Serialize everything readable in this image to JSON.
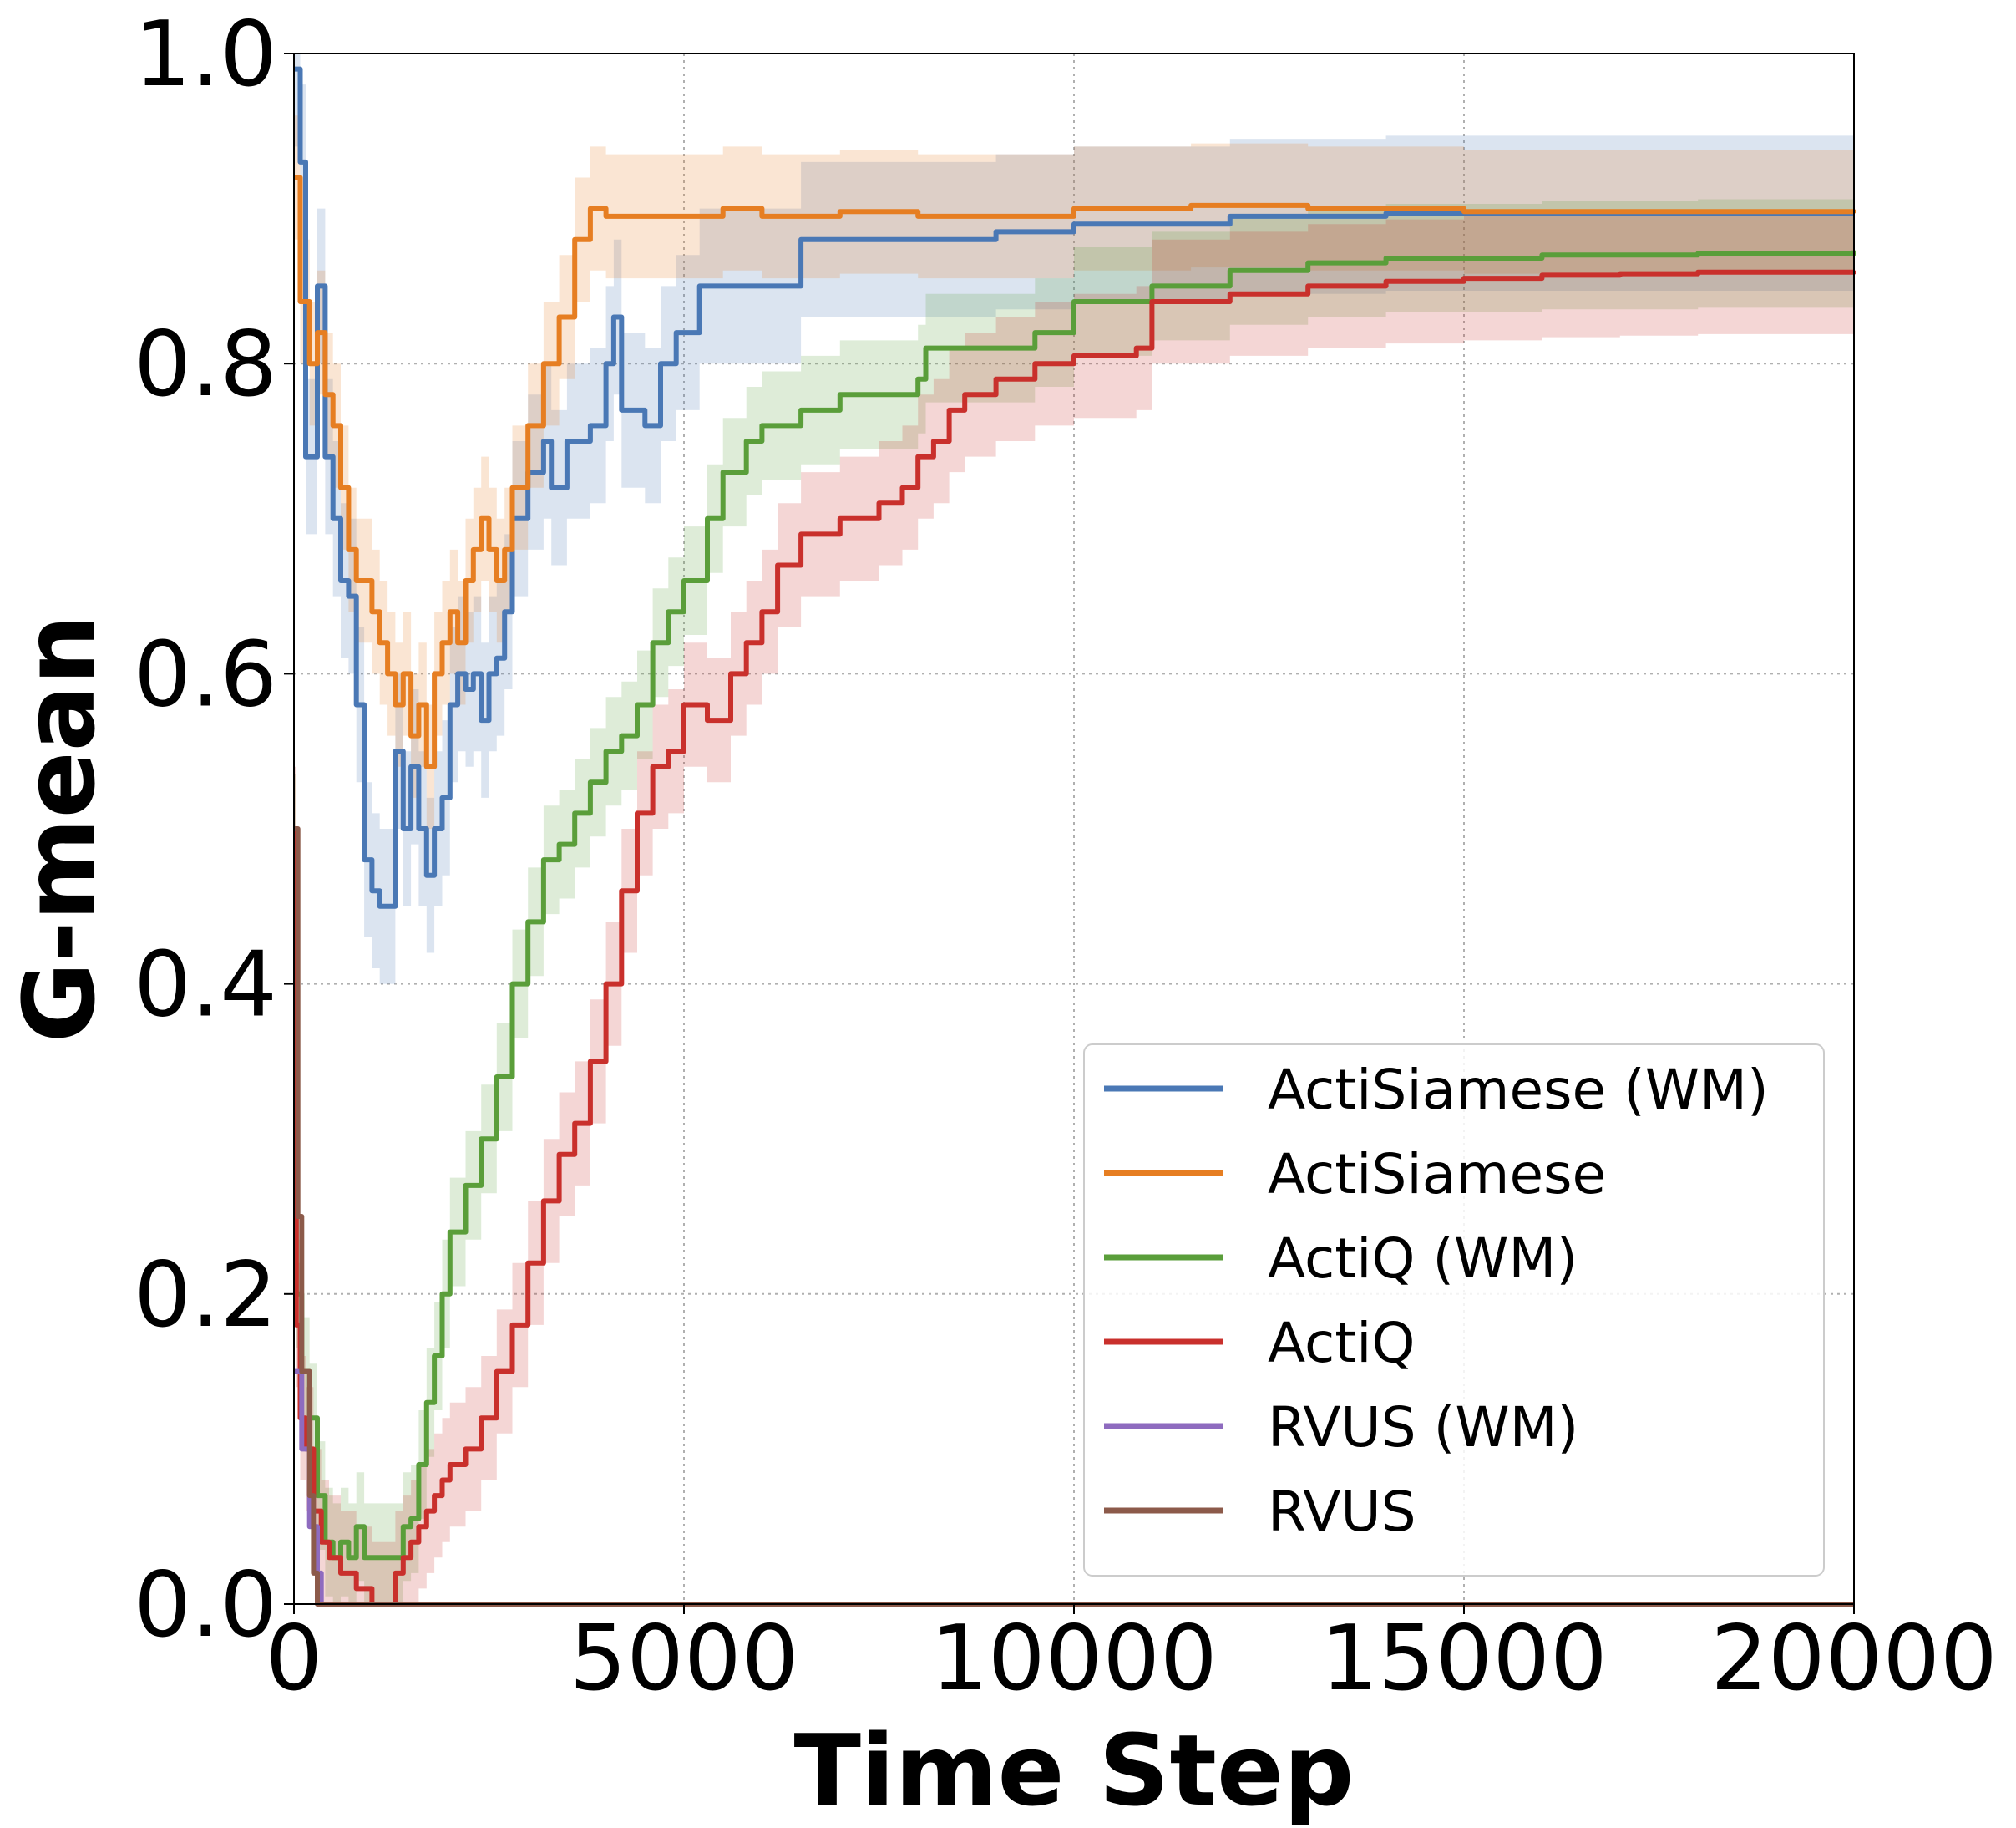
{
  "chart_data": {
    "type": "line",
    "title": "",
    "xlabel": "Time Step",
    "ylabel": "G-mean",
    "xlim": [
      0,
      20000
    ],
    "ylim": [
      0.0,
      1.0
    ],
    "xticks": [
      0,
      5000,
      10000,
      15000,
      20000
    ],
    "xtick_labels": [
      "0",
      "5000",
      "10000",
      "15000",
      "20000"
    ],
    "yticks": [
      0.0,
      0.2,
      0.4,
      0.6,
      0.8,
      1.0
    ],
    "ytick_labels": [
      "0.0",
      "0.2",
      "0.4",
      "0.6",
      "0.8",
      "1.0"
    ],
    "grid": true,
    "legend_position": "lower-right",
    "series": [
      {
        "name": "ActiSiamese (WM)",
        "color": "#4a78b5",
        "band": 0.05,
        "points": [
          [
            0,
            0.99
          ],
          [
            80,
            0.93
          ],
          [
            150,
            0.74
          ],
          [
            300,
            0.85
          ],
          [
            400,
            0.74
          ],
          [
            500,
            0.7
          ],
          [
            600,
            0.66
          ],
          [
            700,
            0.65
          ],
          [
            800,
            0.58
          ],
          [
            900,
            0.48
          ],
          [
            1000,
            0.46
          ],
          [
            1100,
            0.45
          ],
          [
            1200,
            0.45
          ],
          [
            1300,
            0.55
          ],
          [
            1400,
            0.5
          ],
          [
            1500,
            0.54
          ],
          [
            1600,
            0.5
          ],
          [
            1700,
            0.47
          ],
          [
            1800,
            0.5
          ],
          [
            1900,
            0.52
          ],
          [
            2000,
            0.58
          ],
          [
            2100,
            0.6
          ],
          [
            2200,
            0.59
          ],
          [
            2300,
            0.6
          ],
          [
            2400,
            0.57
          ],
          [
            2500,
            0.6
          ],
          [
            2600,
            0.61
          ],
          [
            2700,
            0.64
          ],
          [
            2800,
            0.7
          ],
          [
            3000,
            0.73
          ],
          [
            3200,
            0.75
          ],
          [
            3300,
            0.72
          ],
          [
            3500,
            0.75
          ],
          [
            3800,
            0.76
          ],
          [
            4000,
            0.8
          ],
          [
            4100,
            0.83
          ],
          [
            4200,
            0.77
          ],
          [
            4500,
            0.76
          ],
          [
            4700,
            0.8
          ],
          [
            4900,
            0.82
          ],
          [
            5200,
            0.85
          ],
          [
            5800,
            0.85
          ],
          [
            6400,
            0.85
          ],
          [
            6500,
            0.88
          ],
          [
            7000,
            0.88
          ],
          [
            8000,
            0.88
          ],
          [
            9000,
            0.885
          ],
          [
            10000,
            0.89
          ],
          [
            12000,
            0.895
          ],
          [
            14000,
            0.897
          ],
          [
            17000,
            0.897
          ],
          [
            20000,
            0.897
          ]
        ]
      },
      {
        "name": "ActiSiamese",
        "color": "#e67e22",
        "band": 0.04,
        "points": [
          [
            0,
            0.92
          ],
          [
            80,
            0.84
          ],
          [
            200,
            0.8
          ],
          [
            300,
            0.82
          ],
          [
            400,
            0.78
          ],
          [
            500,
            0.76
          ],
          [
            600,
            0.72
          ],
          [
            700,
            0.68
          ],
          [
            800,
            0.66
          ],
          [
            900,
            0.66
          ],
          [
            1000,
            0.64
          ],
          [
            1100,
            0.62
          ],
          [
            1200,
            0.6
          ],
          [
            1300,
            0.58
          ],
          [
            1400,
            0.6
          ],
          [
            1500,
            0.56
          ],
          [
            1600,
            0.58
          ],
          [
            1700,
            0.54
          ],
          [
            1800,
            0.6
          ],
          [
            1900,
            0.62
          ],
          [
            2000,
            0.64
          ],
          [
            2100,
            0.62
          ],
          [
            2200,
            0.66
          ],
          [
            2300,
            0.68
          ],
          [
            2400,
            0.7
          ],
          [
            2500,
            0.68
          ],
          [
            2600,
            0.66
          ],
          [
            2700,
            0.68
          ],
          [
            2800,
            0.72
          ],
          [
            3000,
            0.76
          ],
          [
            3200,
            0.8
          ],
          [
            3400,
            0.83
          ],
          [
            3600,
            0.88
          ],
          [
            3800,
            0.9
          ],
          [
            4000,
            0.895
          ],
          [
            5000,
            0.895
          ],
          [
            5500,
            0.9
          ],
          [
            6000,
            0.895
          ],
          [
            7000,
            0.898
          ],
          [
            8000,
            0.895
          ],
          [
            10000,
            0.9
          ],
          [
            11500,
            0.902
          ],
          [
            13000,
            0.9
          ],
          [
            15000,
            0.898
          ],
          [
            17000,
            0.898
          ],
          [
            20000,
            0.897
          ]
        ]
      },
      {
        "name": "ActiQ (WM)",
        "color": "#5a9e3a",
        "band": 0.035,
        "points": [
          [
            0,
            0.5
          ],
          [
            30,
            0.2
          ],
          [
            100,
            0.15
          ],
          [
            200,
            0.12
          ],
          [
            300,
            0.07
          ],
          [
            400,
            0.04
          ],
          [
            500,
            0.03
          ],
          [
            600,
            0.04
          ],
          [
            700,
            0.03
          ],
          [
            800,
            0.05
          ],
          [
            900,
            0.03
          ],
          [
            1000,
            0.03
          ],
          [
            1100,
            0.03
          ],
          [
            1300,
            0.03
          ],
          [
            1400,
            0.05
          ],
          [
            1500,
            0.055
          ],
          [
            1600,
            0.09
          ],
          [
            1700,
            0.13
          ],
          [
            1800,
            0.16
          ],
          [
            1900,
            0.2
          ],
          [
            2000,
            0.24
          ],
          [
            2200,
            0.27
          ],
          [
            2400,
            0.3
          ],
          [
            2600,
            0.34
          ],
          [
            2800,
            0.4
          ],
          [
            3000,
            0.44
          ],
          [
            3200,
            0.48
          ],
          [
            3400,
            0.49
          ],
          [
            3600,
            0.51
          ],
          [
            3800,
            0.53
          ],
          [
            4000,
            0.55
          ],
          [
            4200,
            0.56
          ],
          [
            4400,
            0.58
          ],
          [
            4600,
            0.62
          ],
          [
            4800,
            0.64
          ],
          [
            5000,
            0.66
          ],
          [
            5300,
            0.7
          ],
          [
            5500,
            0.73
          ],
          [
            5800,
            0.75
          ],
          [
            6000,
            0.76
          ],
          [
            6500,
            0.77
          ],
          [
            7000,
            0.78
          ],
          [
            8000,
            0.79
          ],
          [
            8100,
            0.81
          ],
          [
            9000,
            0.81
          ],
          [
            9500,
            0.82
          ],
          [
            10000,
            0.84
          ],
          [
            11000,
            0.85
          ],
          [
            12000,
            0.86
          ],
          [
            13000,
            0.865
          ],
          [
            14000,
            0.868
          ],
          [
            16000,
            0.87
          ],
          [
            18000,
            0.871
          ],
          [
            20000,
            0.873
          ]
        ]
      },
      {
        "name": "ActiQ",
        "color": "#c9302c",
        "band": 0.04,
        "points": [
          [
            0,
            0.5
          ],
          [
            30,
            0.18
          ],
          [
            80,
            0.12
          ],
          [
            150,
            0.1
          ],
          [
            250,
            0.06
          ],
          [
            350,
            0.04
          ],
          [
            450,
            0.03
          ],
          [
            600,
            0.02
          ],
          [
            800,
            0.01
          ],
          [
            1000,
            0.0
          ],
          [
            1200,
            0.0
          ],
          [
            1300,
            0.02
          ],
          [
            1400,
            0.03
          ],
          [
            1500,
            0.04
          ],
          [
            1600,
            0.05
          ],
          [
            1700,
            0.06
          ],
          [
            1800,
            0.07
          ],
          [
            1900,
            0.08
          ],
          [
            2000,
            0.09
          ],
          [
            2200,
            0.1
          ],
          [
            2400,
            0.12
          ],
          [
            2600,
            0.15
          ],
          [
            2800,
            0.18
          ],
          [
            3000,
            0.22
          ],
          [
            3200,
            0.26
          ],
          [
            3400,
            0.29
          ],
          [
            3600,
            0.31
          ],
          [
            3800,
            0.35
          ],
          [
            4000,
            0.4
          ],
          [
            4200,
            0.46
          ],
          [
            4400,
            0.51
          ],
          [
            4600,
            0.54
          ],
          [
            4800,
            0.55
          ],
          [
            5000,
            0.58
          ],
          [
            5300,
            0.57
          ],
          [
            5600,
            0.6
          ],
          [
            5800,
            0.62
          ],
          [
            6000,
            0.64
          ],
          [
            6200,
            0.67
          ],
          [
            6500,
            0.69
          ],
          [
            7000,
            0.7
          ],
          [
            7500,
            0.71
          ],
          [
            7800,
            0.72
          ],
          [
            8000,
            0.74
          ],
          [
            8200,
            0.75
          ],
          [
            8400,
            0.77
          ],
          [
            8600,
            0.78
          ],
          [
            9000,
            0.79
          ],
          [
            9500,
            0.8
          ],
          [
            10000,
            0.805
          ],
          [
            10800,
            0.81
          ],
          [
            11000,
            0.84
          ],
          [
            12000,
            0.845
          ],
          [
            13000,
            0.85
          ],
          [
            14000,
            0.853
          ],
          [
            15000,
            0.855
          ],
          [
            16000,
            0.857
          ],
          [
            17000,
            0.858
          ],
          [
            18000,
            0.859
          ],
          [
            20000,
            0.86
          ]
        ]
      },
      {
        "name": "RVUS (WM)",
        "color": "#8e6bbf",
        "band": 0,
        "points": [
          [
            0,
            0.15
          ],
          [
            100,
            0.1
          ],
          [
            200,
            0.05
          ],
          [
            300,
            0.02
          ],
          [
            350,
            0.0
          ],
          [
            20000,
            0.0
          ]
        ]
      },
      {
        "name": "RVUS",
        "color": "#8c5a4a",
        "band": 0,
        "points": [
          [
            0,
            0.5
          ],
          [
            50,
            0.25
          ],
          [
            100,
            0.15
          ],
          [
            200,
            0.07
          ],
          [
            250,
            0.02
          ],
          [
            300,
            0.0
          ],
          [
            20000,
            0.0
          ]
        ]
      }
    ]
  }
}
